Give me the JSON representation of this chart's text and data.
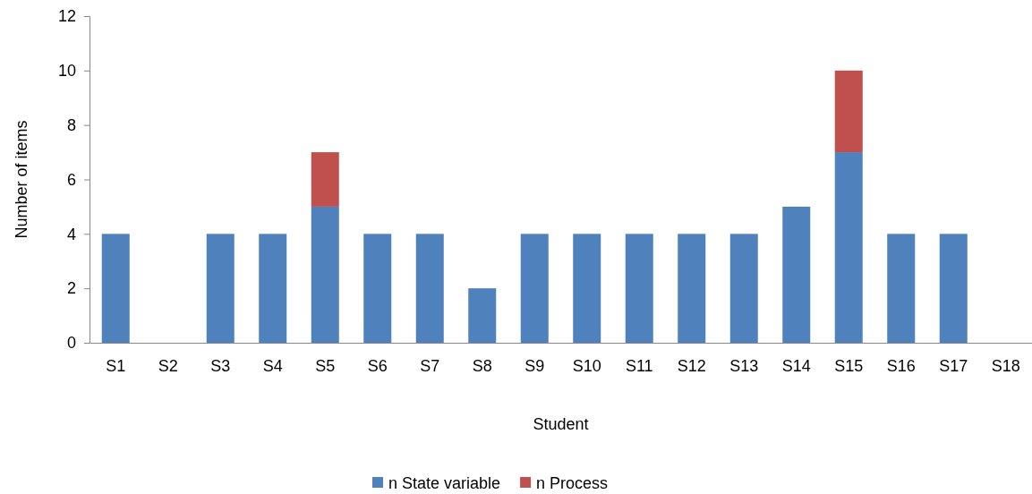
{
  "chart_data": {
    "type": "bar",
    "stacked": true,
    "xlabel": "Student",
    "ylabel": "Number of items",
    "categories": [
      "S1",
      "S2",
      "S3",
      "S4",
      "S5",
      "S6",
      "S7",
      "S8",
      "S9",
      "S10",
      "S11",
      "S12",
      "S13",
      "S14",
      "S15",
      "S16",
      "S17",
      "S18"
    ],
    "series": [
      {
        "name": "n State variable",
        "color": "#4f81bd",
        "values": [
          4,
          0,
          4,
          4,
          5,
          4,
          4,
          2,
          4,
          4,
          4,
          4,
          4,
          5,
          7,
          4,
          4,
          0
        ]
      },
      {
        "name": "n Process",
        "color": "#c0504d",
        "values": [
          0,
          0,
          0,
          0,
          2,
          0,
          0,
          0,
          0,
          0,
          0,
          0,
          0,
          0,
          3,
          0,
          0,
          0
        ]
      }
    ],
    "ylim": [
      0,
      12
    ],
    "yticks": [
      0,
      2,
      4,
      6,
      8,
      10,
      12
    ],
    "grid": false,
    "legend": "bottom"
  }
}
